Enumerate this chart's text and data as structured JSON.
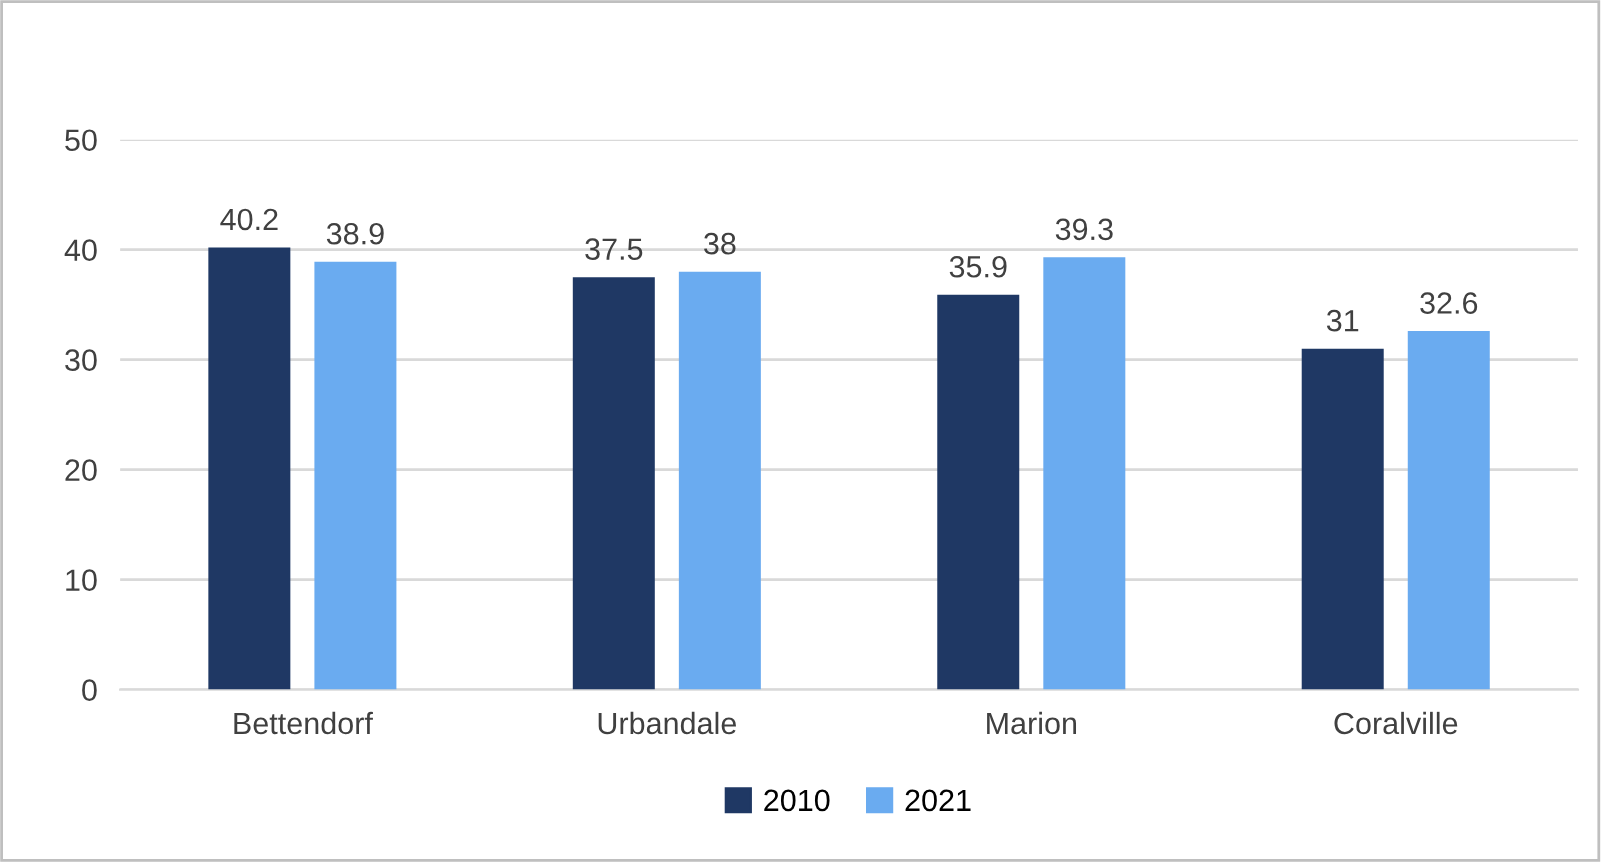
{
  "chart_data": {
    "type": "bar",
    "categories": [
      "Bettendorf",
      "Urbandale",
      "Marion",
      "Coralville"
    ],
    "series": [
      {
        "name": "2010",
        "color": "#1f3864",
        "values": [
          40.2,
          37.5,
          35.9,
          31
        ]
      },
      {
        "name": "2021",
        "color": "#6aabf0",
        "values": [
          38.9,
          38,
          39.3,
          32.6
        ]
      }
    ],
    "ylim": [
      0,
      50
    ],
    "yticks": [
      0,
      10,
      20,
      30,
      40,
      50
    ],
    "grid": "y",
    "legend": "bottom",
    "data_labels": true
  }
}
